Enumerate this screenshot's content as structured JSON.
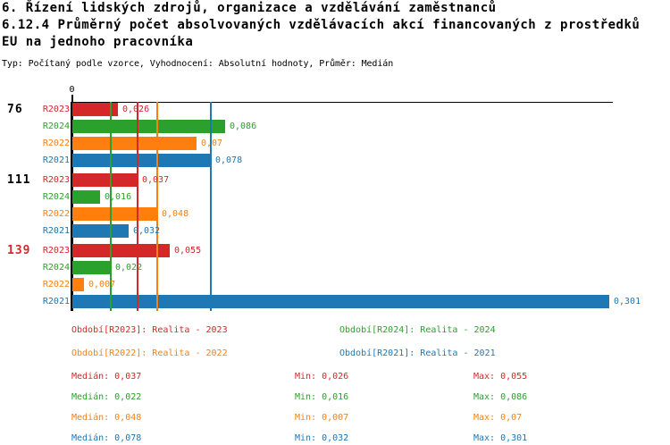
{
  "header": {
    "line1": "6. Řízení lidských zdrojů, organizace a vzdělávání zaměstnanců",
    "line2": "6.12.4 Průměrný počet absolvovaných vzdělávacích akcí financovaných z prostředků",
    "line3": "EU na jednoho pracovníka",
    "meta": "Typ: Počítaný podle vzorce, Vyhodnocení: Absolutní hodnoty, Průměr: Medián"
  },
  "chart_data": {
    "type": "bar",
    "orientation": "horizontal",
    "axis": {
      "zero_label": "0",
      "xlim": [
        0,
        0.3025
      ],
      "gridlines": "median-per-series"
    },
    "groups": [
      {
        "label": "76",
        "label_color": "#000000",
        "bars": [
          {
            "series": "R2023",
            "value": 0.026,
            "value_label": "0,026"
          },
          {
            "series": "R2024",
            "value": 0.086,
            "value_label": "0,086"
          },
          {
            "series": "R2022",
            "value": 0.07,
            "value_label": "0,07"
          },
          {
            "series": "R2021",
            "value": 0.078,
            "value_label": "0,078"
          }
        ]
      },
      {
        "label": "111",
        "label_color": "#000000",
        "bars": [
          {
            "series": "R2023",
            "value": 0.037,
            "value_label": "0,037"
          },
          {
            "series": "R2024",
            "value": 0.016,
            "value_label": "0,016"
          },
          {
            "series": "R2022",
            "value": 0.048,
            "value_label": "0,048"
          },
          {
            "series": "R2021",
            "value": 0.032,
            "value_label": "0,032"
          }
        ]
      },
      {
        "label": "139",
        "label_color": "#d62728",
        "bars": [
          {
            "series": "R2023",
            "value": 0.055,
            "value_label": "0,055"
          },
          {
            "series": "R2024",
            "value": 0.022,
            "value_label": "0,022"
          },
          {
            "series": "R2022",
            "value": 0.007,
            "value_label": "0,007"
          },
          {
            "series": "R2021",
            "value": 0.301,
            "value_label": "0,301"
          }
        ]
      }
    ],
    "series_colors": {
      "R2023": "#d62728",
      "R2024": "#2ca02c",
      "R2022": "#ff7f0e",
      "R2021": "#1f77b4"
    },
    "median_lines": [
      {
        "series": "R2024",
        "value": 0.022,
        "color": "#2ca02c"
      },
      {
        "series": "R2023",
        "value": 0.037,
        "color": "#d62728"
      },
      {
        "series": "R2022",
        "value": 0.048,
        "color": "#ff7f0e"
      },
      {
        "series": "R2021",
        "value": 0.078,
        "color": "#1f77b4"
      }
    ]
  },
  "legend": {
    "items": [
      {
        "label": "Období[R2023]: Realita - 2023",
        "color": "#d62728"
      },
      {
        "label": "Období[R2024]: Realita - 2024",
        "color": "#2ca02c"
      },
      {
        "label": "Období[R2022]: Realita - 2022",
        "color": "#ff7f0e"
      },
      {
        "label": "Období[R2021]: Realita - 2021",
        "color": "#1f77b4"
      }
    ]
  },
  "stats": {
    "rows": [
      {
        "series": "R2023",
        "color": "#d62728",
        "median": "Medián: 0,037",
        "min": "Min: 0,026",
        "max": "Max: 0,055"
      },
      {
        "series": "R2024",
        "color": "#2ca02c",
        "median": "Medián: 0,022",
        "min": "Min: 0,016",
        "max": "Max: 0,086"
      },
      {
        "series": "R2022",
        "color": "#ff7f0e",
        "median": "Medián: 0,048",
        "min": "Min: 0,007",
        "max": "Max: 0,07"
      },
      {
        "series": "R2021",
        "color": "#1f77b4",
        "median": "Medián: 0,078",
        "min": "Min: 0,032",
        "max": "Max: 0,301"
      }
    ]
  }
}
